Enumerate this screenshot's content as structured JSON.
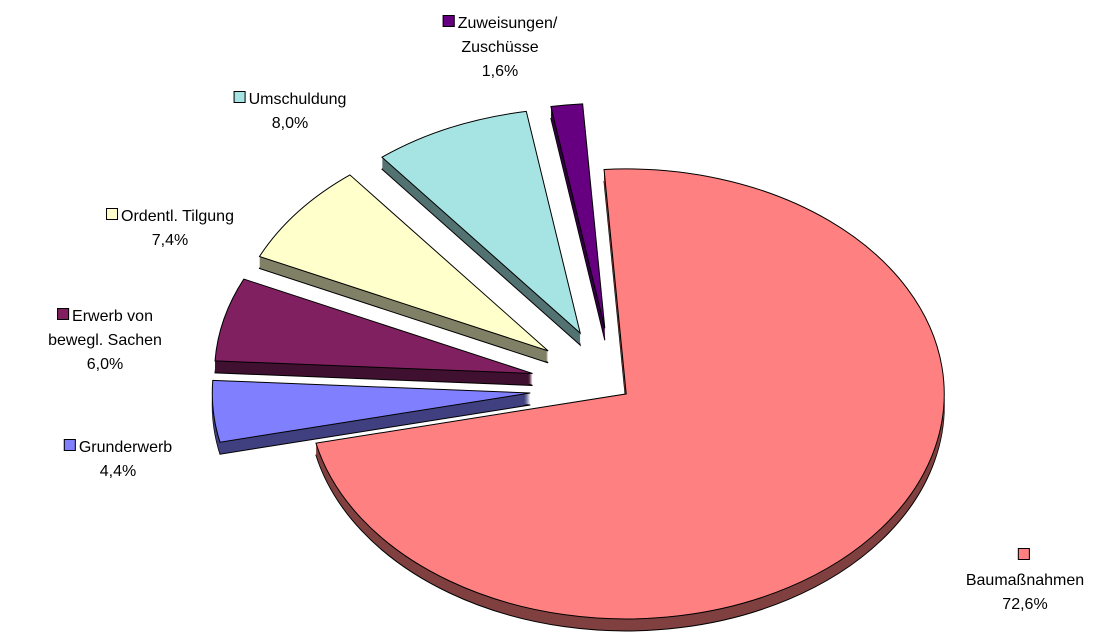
{
  "chart_data": {
    "type": "pie",
    "categories": [
      "Baumaßnahmen",
      "Grunderwerb",
      "Erwerb von\nbewegl. Sachen",
      "Ordentl. Tilgung",
      "Umschuldung",
      "Zuweisungen/\nZuschüsse"
    ],
    "values": [
      72.6,
      4.4,
      6.0,
      7.4,
      8.0,
      1.6
    ],
    "value_labels": [
      "72,6%",
      "4,4%",
      "6,0%",
      "7,4%",
      "8,0%",
      "1,6%"
    ],
    "colors": [
      "#ff8080",
      "#8080ff",
      "#802060",
      "#ffffcc",
      "#a6e3e3",
      "#660080"
    ]
  }
}
